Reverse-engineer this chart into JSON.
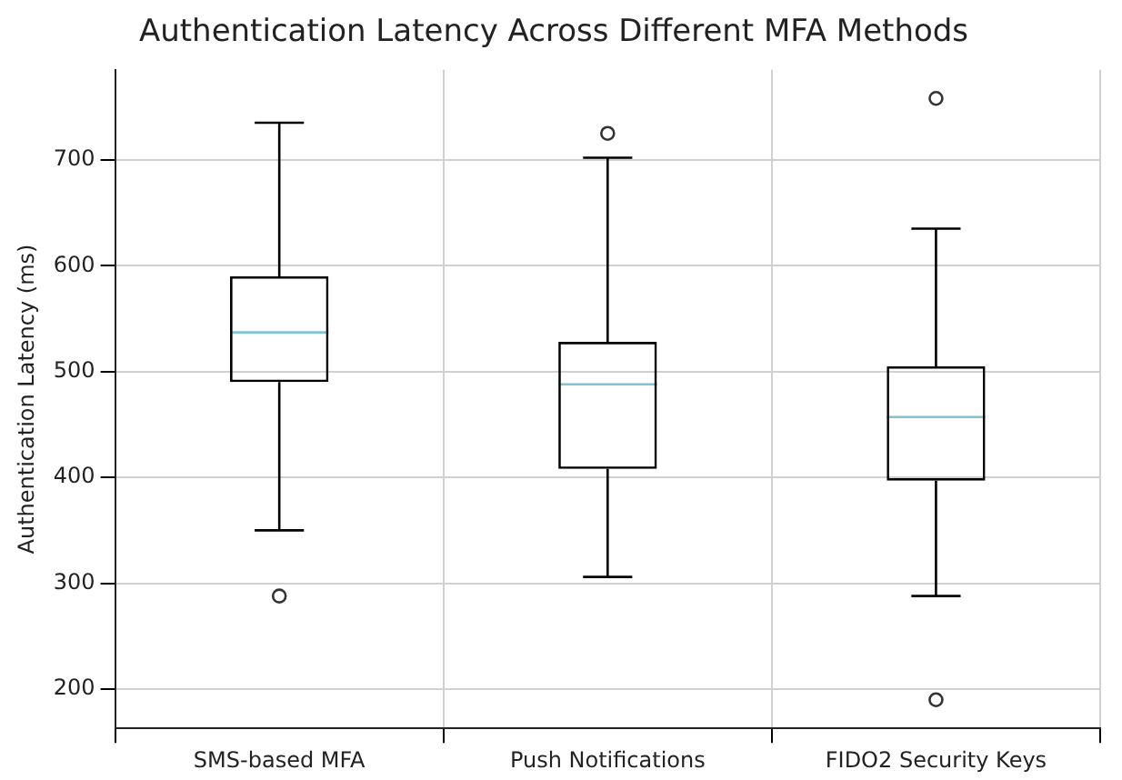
{
  "chart_data": {
    "type": "box",
    "title": "Authentication Latency Across Different MFA Methods",
    "ylabel": "Authentication Latency (ms)",
    "categories": [
      "SMS-based MFA",
      "Push Notifications",
      "FIDO2 Security Keys"
    ],
    "boxes": [
      {
        "low": 350,
        "q1": 490,
        "median": 537,
        "q3": 590,
        "high": 735,
        "outliers": [
          288
        ]
      },
      {
        "low": 306,
        "q1": 408,
        "median": 488,
        "q3": 528,
        "high": 702,
        "outliers": [
          725
        ]
      },
      {
        "low": 288,
        "q1": 397,
        "median": 457,
        "q3": 505,
        "high": 635,
        "outliers": [
          190,
          758
        ]
      }
    ],
    "ylim": [
      163,
      785
    ],
    "yticks": [
      200,
      300,
      400,
      500,
      600,
      700
    ],
    "grid": true
  }
}
